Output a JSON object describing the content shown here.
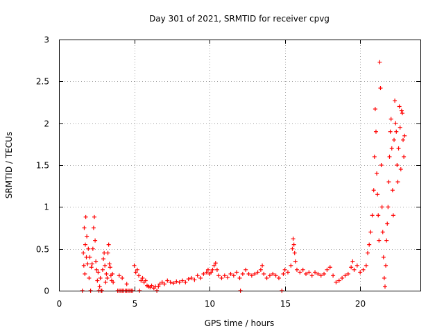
{
  "chart_data": {
    "type": "scatter",
    "title": "Day 301 of 2021, SRMTID for receiver cpvg",
    "xlabel": "GPS time / hours",
    "ylabel": "SRMTID / TECUs",
    "xlim": [
      0,
      24
    ],
    "ylim": [
      0,
      3
    ],
    "xticks": [
      0,
      5,
      10,
      15,
      20
    ],
    "yticks": [
      0,
      0.5,
      1,
      1.5,
      2,
      2.5,
      3
    ],
    "xtick_labels": [
      "0",
      "5",
      "10",
      "15",
      "20"
    ],
    "ytick_labels": [
      "0",
      "0.5",
      "1",
      "1.5",
      "2",
      "2.5",
      "3"
    ],
    "grid": true,
    "marker": "+",
    "series": [
      {
        "name": "SRMTID",
        "color": "#ff0000",
        "points": [
          [
            1.55,
            0.0
          ],
          [
            1.62,
            0.45
          ],
          [
            1.65,
            0.3
          ],
          [
            1.68,
            0.75
          ],
          [
            1.72,
            0.2
          ],
          [
            1.75,
            0.55
          ],
          [
            1.78,
            0.88
          ],
          [
            1.82,
            0.4
          ],
          [
            1.85,
            0.65
          ],
          [
            1.9,
            0.32
          ],
          [
            1.95,
            0.5
          ],
          [
            2.0,
            0.15
          ],
          [
            2.05,
            0.4
          ],
          [
            2.1,
            0.0
          ],
          [
            2.15,
            0.28
          ],
          [
            2.2,
            0.32
          ],
          [
            2.25,
            0.5
          ],
          [
            2.3,
            0.75
          ],
          [
            2.35,
            0.88
          ],
          [
            2.4,
            0.6
          ],
          [
            2.45,
            0.35
          ],
          [
            2.5,
            0.25
          ],
          [
            2.55,
            0.12
          ],
          [
            2.6,
            0.22
          ],
          [
            2.65,
            0.0
          ],
          [
            2.7,
            0.05
          ],
          [
            2.75,
            0.15
          ],
          [
            2.8,
            0.0
          ],
          [
            2.85,
            0.0
          ],
          [
            2.9,
            0.25
          ],
          [
            2.95,
            0.38
          ],
          [
            3.0,
            0.45
          ],
          [
            3.05,
            0.3
          ],
          [
            3.1,
            0.1
          ],
          [
            3.15,
            0.2
          ],
          [
            3.2,
            0.15
          ],
          [
            3.25,
            0.45
          ],
          [
            3.3,
            0.55
          ],
          [
            3.35,
            0.32
          ],
          [
            3.4,
            0.28
          ],
          [
            3.45,
            0.18
          ],
          [
            3.5,
            0.12
          ],
          [
            3.55,
            0.2
          ],
          [
            3.6,
            0.1
          ],
          [
            3.9,
            0.0
          ],
          [
            4.0,
            0.0
          ],
          [
            4.1,
            0.0
          ],
          [
            4.2,
            0.0
          ],
          [
            4.3,
            0.0
          ],
          [
            4.4,
            0.0
          ],
          [
            4.5,
            0.0
          ],
          [
            4.6,
            0.0
          ],
          [
            4.7,
            0.0
          ],
          [
            4.8,
            0.0
          ],
          [
            4.9,
            0.0
          ],
          [
            4.0,
            0.18
          ],
          [
            4.2,
            0.15
          ],
          [
            4.5,
            0.08
          ],
          [
            5.0,
            0.3
          ],
          [
            5.1,
            0.22
          ],
          [
            5.2,
            0.25
          ],
          [
            5.3,
            0.18
          ],
          [
            5.35,
            0.0
          ],
          [
            5.45,
            0.12
          ],
          [
            5.55,
            0.15
          ],
          [
            5.65,
            0.1
          ],
          [
            5.75,
            0.12
          ],
          [
            5.85,
            0.06
          ],
          [
            5.95,
            0.05
          ],
          [
            6.05,
            0.04
          ],
          [
            6.15,
            0.06
          ],
          [
            6.3,
            0.03
          ],
          [
            6.4,
            0.05
          ],
          [
            6.5,
            0.0
          ],
          [
            6.6,
            0.05
          ],
          [
            6.7,
            0.08
          ],
          [
            6.85,
            0.1
          ],
          [
            7.0,
            0.08
          ],
          [
            7.2,
            0.12
          ],
          [
            7.4,
            0.1
          ],
          [
            7.6,
            0.09
          ],
          [
            7.8,
            0.11
          ],
          [
            8.0,
            0.1
          ],
          [
            8.2,
            0.12
          ],
          [
            8.4,
            0.1
          ],
          [
            8.6,
            0.14
          ],
          [
            8.8,
            0.15
          ],
          [
            9.0,
            0.13
          ],
          [
            9.2,
            0.18
          ],
          [
            9.4,
            0.15
          ],
          [
            9.6,
            0.2
          ],
          [
            9.8,
            0.22
          ],
          [
            9.9,
            0.25
          ],
          [
            10.0,
            0.2
          ],
          [
            10.1,
            0.22
          ],
          [
            10.2,
            0.25
          ],
          [
            10.3,
            0.3
          ],
          [
            10.4,
            0.33
          ],
          [
            10.5,
            0.25
          ],
          [
            10.6,
            0.18
          ],
          [
            10.8,
            0.15
          ],
          [
            11.0,
            0.18
          ],
          [
            11.2,
            0.16
          ],
          [
            11.4,
            0.2
          ],
          [
            11.6,
            0.18
          ],
          [
            11.8,
            0.22
          ],
          [
            12.0,
            0.15
          ],
          [
            12.05,
            0.0
          ],
          [
            12.2,
            0.2
          ],
          [
            12.4,
            0.25
          ],
          [
            12.6,
            0.2
          ],
          [
            12.8,
            0.18
          ],
          [
            13.0,
            0.2
          ],
          [
            13.2,
            0.22
          ],
          [
            13.4,
            0.25
          ],
          [
            13.5,
            0.3
          ],
          [
            13.6,
            0.2
          ],
          [
            13.8,
            0.15
          ],
          [
            14.0,
            0.18
          ],
          [
            14.2,
            0.2
          ],
          [
            14.4,
            0.18
          ],
          [
            14.6,
            0.15
          ],
          [
            14.8,
            0.0
          ],
          [
            14.9,
            0.2
          ],
          [
            15.0,
            0.25
          ],
          [
            15.2,
            0.22
          ],
          [
            15.4,
            0.3
          ],
          [
            15.5,
            0.5
          ],
          [
            15.55,
            0.62
          ],
          [
            15.6,
            0.55
          ],
          [
            15.65,
            0.45
          ],
          [
            15.7,
            0.35
          ],
          [
            15.8,
            0.25
          ],
          [
            16.0,
            0.22
          ],
          [
            16.2,
            0.25
          ],
          [
            16.4,
            0.2
          ],
          [
            16.6,
            0.22
          ],
          [
            16.8,
            0.18
          ],
          [
            17.0,
            0.22
          ],
          [
            17.2,
            0.2
          ],
          [
            17.4,
            0.18
          ],
          [
            17.6,
            0.2
          ],
          [
            17.8,
            0.25
          ],
          [
            18.0,
            0.28
          ],
          [
            18.2,
            0.18
          ],
          [
            18.4,
            0.1
          ],
          [
            18.6,
            0.12
          ],
          [
            18.8,
            0.15
          ],
          [
            19.0,
            0.18
          ],
          [
            19.2,
            0.2
          ],
          [
            19.4,
            0.28
          ],
          [
            19.5,
            0.35
          ],
          [
            19.6,
            0.25
          ],
          [
            19.8,
            0.3
          ],
          [
            20.0,
            0.22
          ],
          [
            20.2,
            0.25
          ],
          [
            20.4,
            0.3
          ],
          [
            20.5,
            0.45
          ],
          [
            20.6,
            0.55
          ],
          [
            20.7,
            0.7
          ],
          [
            20.8,
            0.9
          ],
          [
            20.9,
            1.2
          ],
          [
            20.95,
            1.6
          ],
          [
            21.0,
            2.17
          ],
          [
            21.05,
            1.9
          ],
          [
            21.1,
            1.4
          ],
          [
            21.15,
            1.15
          ],
          [
            21.2,
            0.9
          ],
          [
            21.25,
            0.6
          ],
          [
            21.3,
            2.73
          ],
          [
            21.35,
            2.42
          ],
          [
            21.4,
            1.5
          ],
          [
            21.45,
            1.0
          ],
          [
            21.5,
            0.7
          ],
          [
            21.55,
            0.4
          ],
          [
            21.6,
            0.15
          ],
          [
            21.65,
            0.05
          ],
          [
            21.7,
            0.3
          ],
          [
            21.75,
            0.6
          ],
          [
            21.8,
            0.8
          ],
          [
            21.85,
            1.0
          ],
          [
            21.9,
            1.3
          ],
          [
            21.95,
            1.6
          ],
          [
            22.0,
            1.9
          ],
          [
            22.05,
            2.05
          ],
          [
            22.1,
            1.7
          ],
          [
            22.15,
            1.2
          ],
          [
            22.2,
            0.9
          ],
          [
            22.25,
            1.8
          ],
          [
            22.3,
            2.27
          ],
          [
            22.35,
            2.0
          ],
          [
            22.4,
            1.9
          ],
          [
            22.45,
            1.5
          ],
          [
            22.5,
            1.3
          ],
          [
            22.55,
            1.7
          ],
          [
            22.6,
            2.2
          ],
          [
            22.65,
            1.95
          ],
          [
            22.7,
            1.45
          ],
          [
            22.75,
            2.15
          ],
          [
            22.8,
            2.12
          ],
          [
            22.85,
            1.8
          ],
          [
            22.9,
            1.6
          ],
          [
            22.95,
            1.85
          ]
        ]
      }
    ]
  }
}
